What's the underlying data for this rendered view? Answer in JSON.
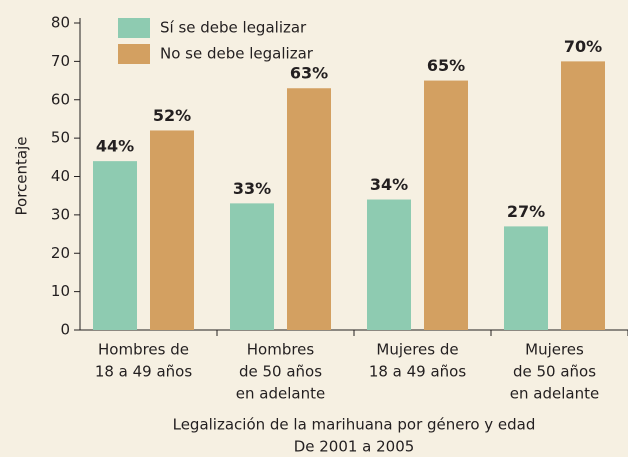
{
  "chart_data": {
    "type": "bar",
    "categories": [
      [
        "Hombres de",
        "18 a 49 años"
      ],
      [
        "Hombres",
        "de 50 años",
        "en adelante"
      ],
      [
        "Mujeres de",
        "18 a 49 años"
      ],
      [
        "Mujeres",
        "de 50 años",
        "en adelante"
      ]
    ],
    "series": [
      {
        "name": "Sí se debe legalizar",
        "color": "#8ecbb1",
        "values": [
          44,
          33,
          34,
          27
        ],
        "value_labels": [
          "44%",
          "33%",
          "34%",
          "27%"
        ]
      },
      {
        "name": "No se debe legalizar",
        "color": "#d3a061",
        "values": [
          52,
          63,
          65,
          70
        ],
        "value_labels": [
          "52%",
          "63%",
          "65%",
          "70%"
        ]
      }
    ],
    "ylabel": "Porcentaje",
    "xlabel": [
      "Legalización de la marihuana por género y edad",
      "De 2001 a 2005"
    ],
    "ylim": [
      0,
      80
    ],
    "yticks": [
      0,
      10,
      20,
      30,
      40,
      50,
      60,
      70,
      80
    ],
    "legend": "upper left"
  }
}
